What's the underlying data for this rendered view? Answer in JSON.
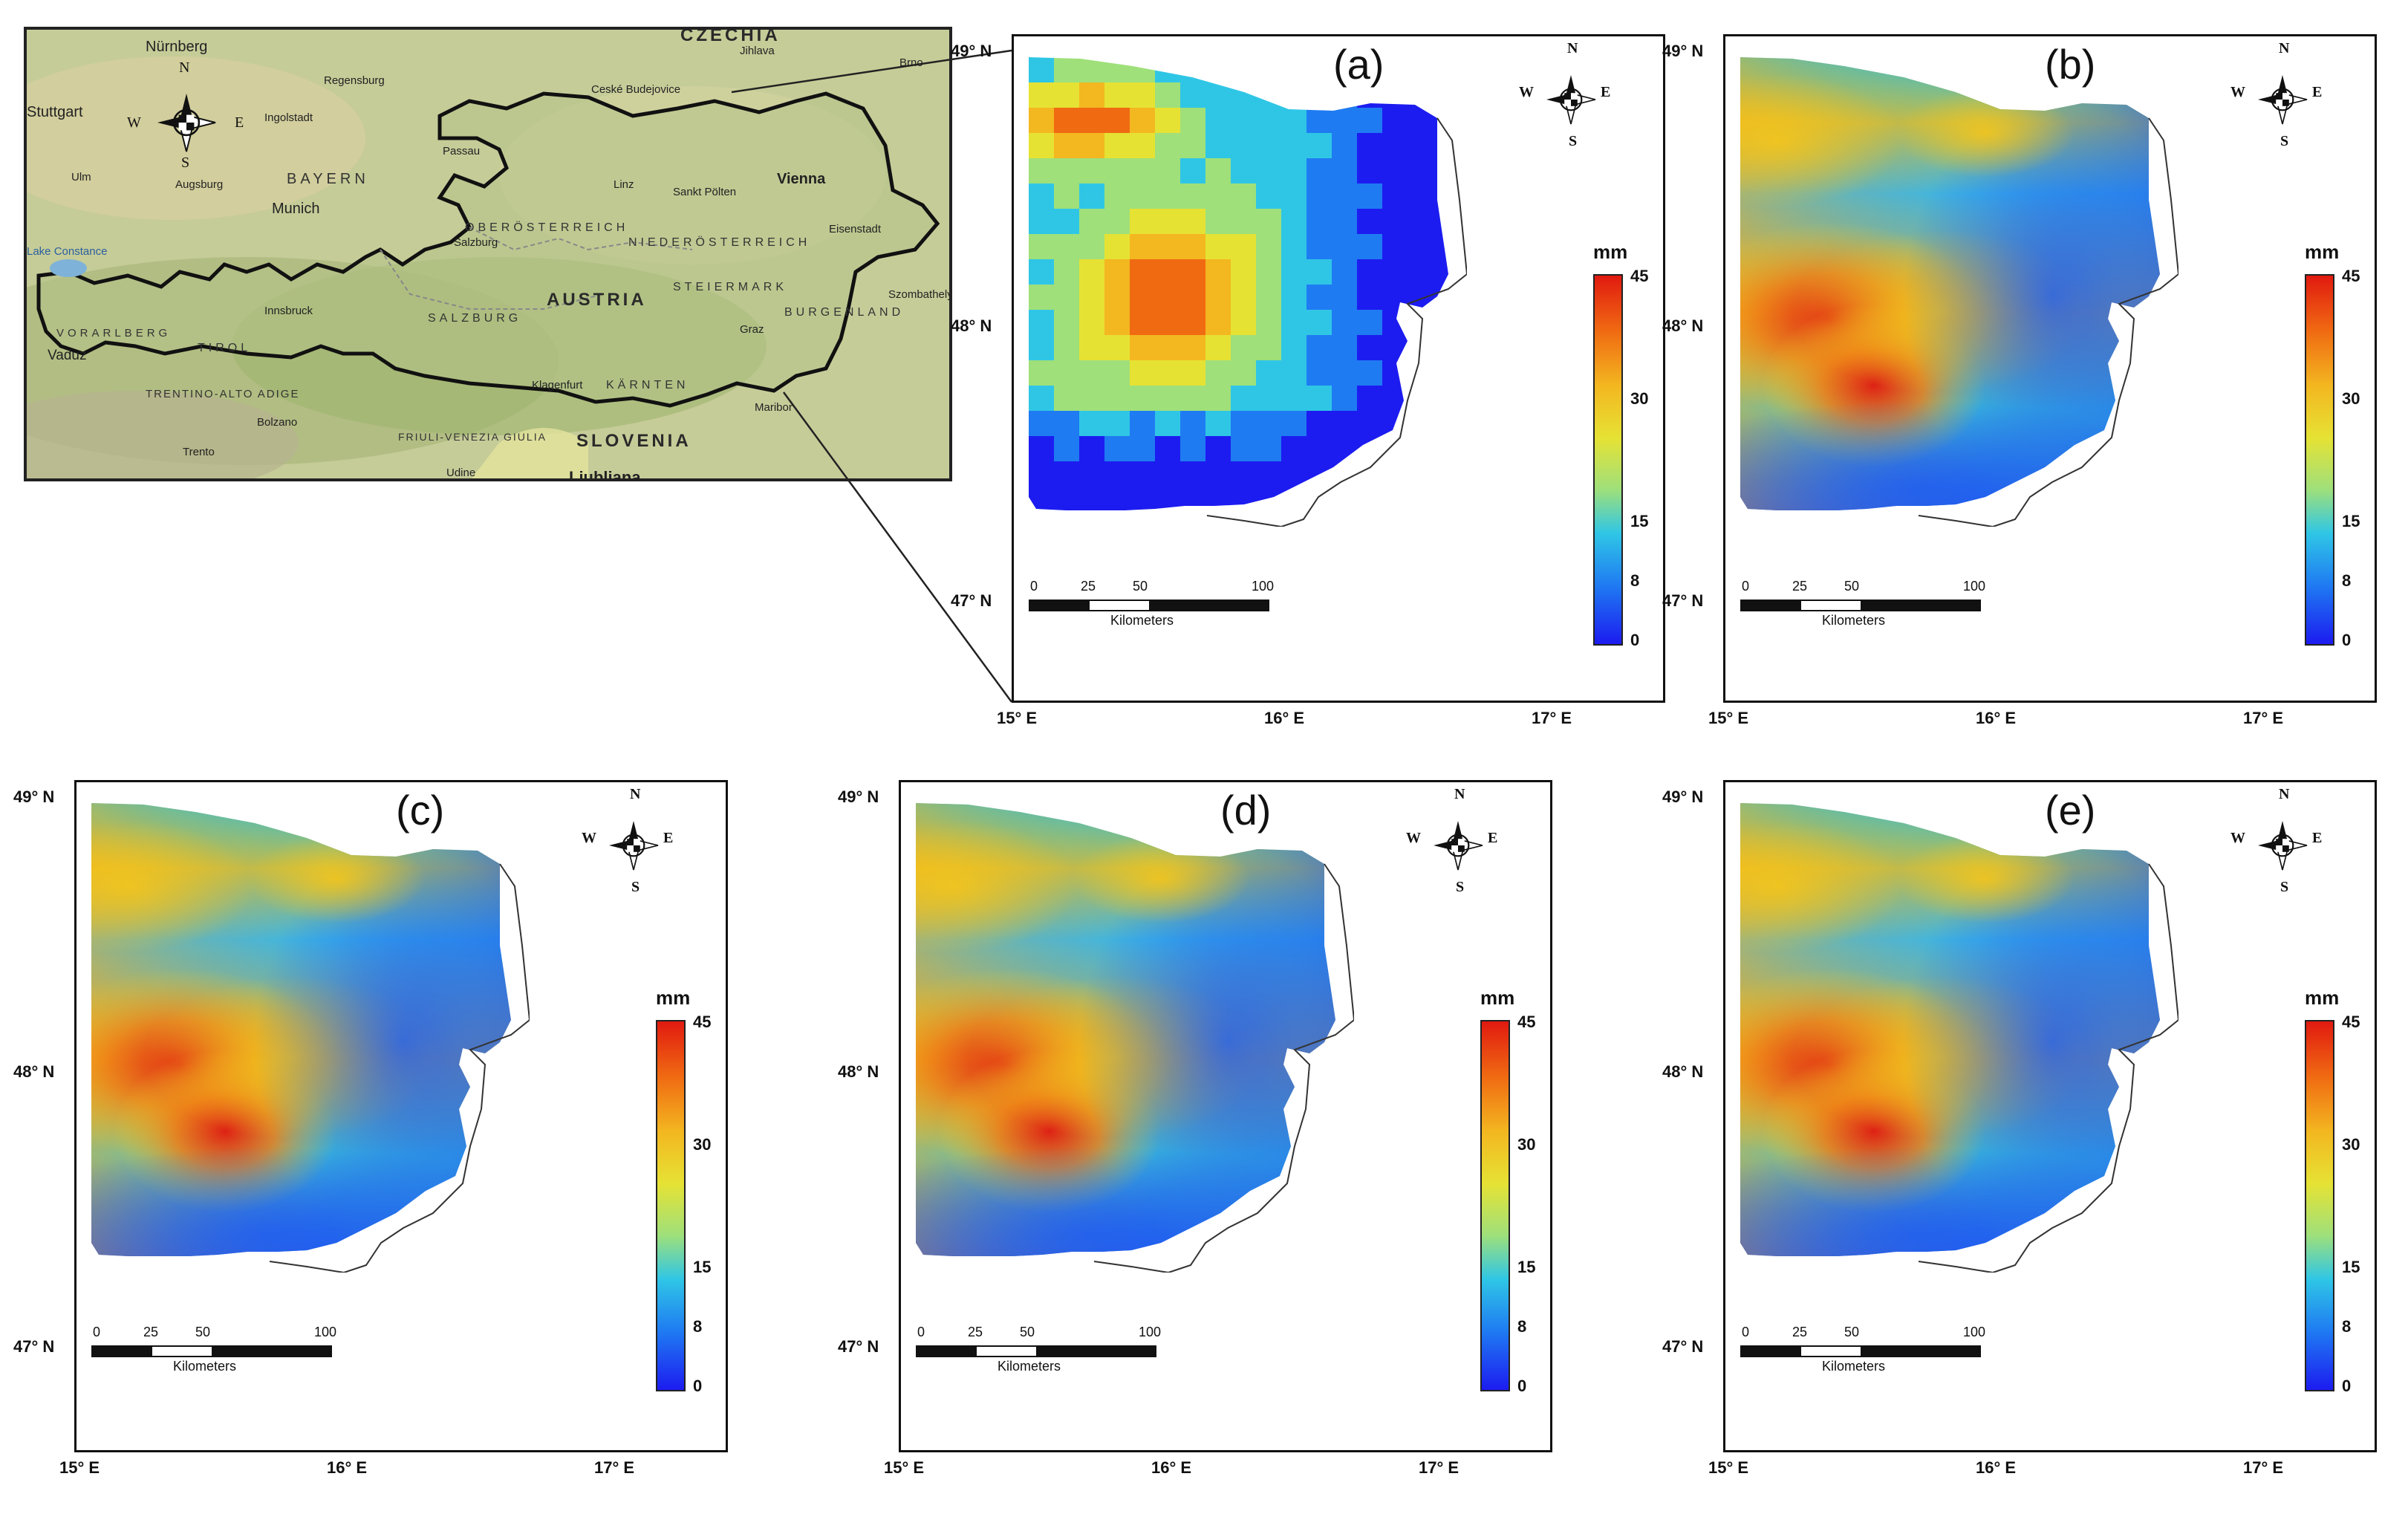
{
  "inset_map": {
    "countries": [
      "CZECHIA",
      "AUSTRIA",
      "SLOVENIA"
    ],
    "regions": [
      "BAYERN",
      "OBERÖSTERREICH",
      "NIEDERÖSTERREICH",
      "STEIERMARK",
      "BURGENLAND",
      "KÄRNTEN",
      "SALZBURG",
      "TIROL",
      "VORARLBERG",
      "TRENTINO-ALTO ADIGE",
      "FRIULI-VENEZIA GIULIA"
    ],
    "cities": [
      "Nürnberg",
      "Regensburg",
      "Ingolstadt",
      "Stuttgart",
      "Ulm",
      "Augsburg",
      "Munich",
      "Passau",
      "Linz",
      "Vienna",
      "Sankt Pölten",
      "Eisenstadt",
      "Salzburg",
      "Innsbruck",
      "Graz",
      "Klagenfurt",
      "Maribor",
      "Bolzano",
      "Udine",
      "Ljubljana",
      "Ceské Budejovice",
      "Jihlava",
      "Brno",
      "Szombathely",
      "Vaduz",
      "Lake Constance",
      "Trento"
    ]
  },
  "compass": {
    "n": "N",
    "s": "S",
    "e": "E",
    "w": "W"
  },
  "legend": {
    "unit": "mm",
    "ticks": [
      "45",
      "30",
      "15",
      "8",
      "0"
    ]
  },
  "scalebar": {
    "ticks": [
      "0",
      "25",
      "50",
      "100"
    ],
    "unit": "Kilometers"
  },
  "axes": {
    "lat_labels": [
      "49° N",
      "48° N",
      "47° N"
    ],
    "lon_labels": [
      "15° E",
      "16° E",
      "17° E"
    ]
  },
  "panels": [
    {
      "id": "a",
      "label": "(a)",
      "style": "gridded"
    },
    {
      "id": "b",
      "label": "(b)",
      "style": "interpolated"
    },
    {
      "id": "c",
      "label": "(c)",
      "style": "interpolated"
    },
    {
      "id": "d",
      "label": "(d)",
      "style": "interpolated"
    },
    {
      "id": "e",
      "label": "(e)",
      "style": "interpolated"
    }
  ],
  "colors": {
    "low": "#1c1cf0",
    "mid_low": "#2fc6e6",
    "mid": "#e6e234",
    "high": "#e11a10"
  }
}
